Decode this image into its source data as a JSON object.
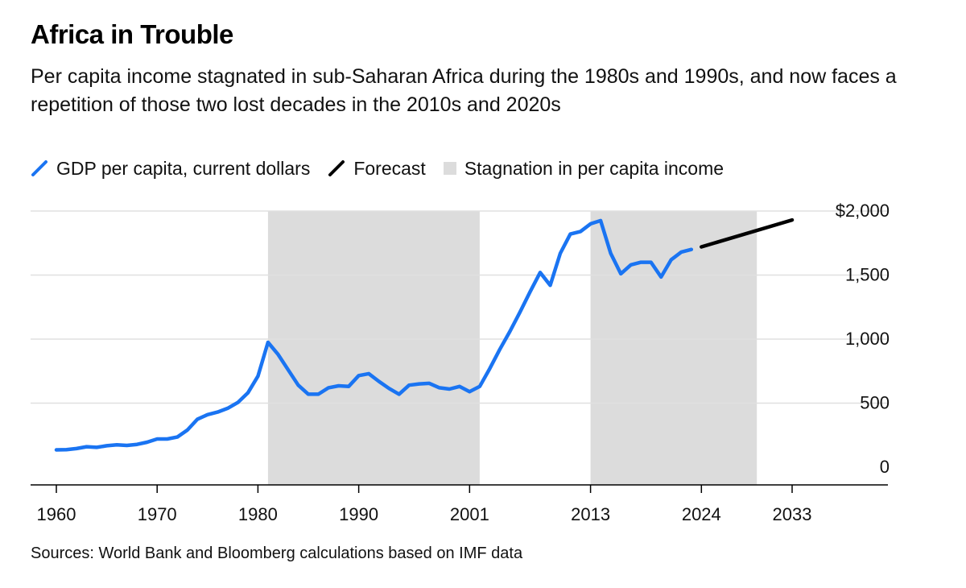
{
  "title": "Africa in Trouble",
  "subtitle": "Per capita income stagnated in sub-Saharan Africa during the 1980s and 1990s, and now faces a repetition of those two lost decades in the 2010s and 2020s",
  "source": "Sources: World Bank and Bloomberg calculations based on IMF data",
  "colors": {
    "gdp": "#1a74f2",
    "forecast": "#000000",
    "stagnation": "#dcdcdc",
    "grid": "#e0e0e0",
    "axis": "#000000"
  },
  "chart_data": {
    "type": "line",
    "title": "Africa in Trouble",
    "legend": [
      {
        "key": "gdp",
        "label": "GDP per capita, current dollars",
        "style": "line"
      },
      {
        "key": "forecast",
        "label": "Forecast",
        "style": "line"
      },
      {
        "key": "stagnation",
        "label": "Stagnation in per capita income",
        "style": "box"
      }
    ],
    "legend_placement": "top-left",
    "xlim": [
      1960,
      2033
    ],
    "x_ticks": [
      1960,
      1970,
      1980,
      1990,
      2001,
      2013,
      2024,
      2033
    ],
    "ylim": [
      0,
      2000
    ],
    "y_ticks": [
      0,
      500,
      1000,
      1500,
      2000
    ],
    "y_tick_labels": [
      "0",
      "500",
      "1,000",
      "1,500",
      "$2,000"
    ],
    "y_axis_side": "right",
    "grid": true,
    "stagnation_periods": [
      [
        1981,
        2002
      ],
      [
        2013,
        2029.5
      ]
    ],
    "series": [
      {
        "key": "gdp",
        "name": "GDP per capita, current dollars",
        "x": [
          1960,
          1961,
          1962,
          1963,
          1964,
          1965,
          1966,
          1967,
          1968,
          1969,
          1970,
          1971,
          1972,
          1973,
          1974,
          1975,
          1976,
          1977,
          1978,
          1979,
          1980,
          1981,
          1982,
          1983,
          1984,
          1985,
          1986,
          1987,
          1988,
          1989,
          1990,
          1991,
          1992,
          1993,
          1994,
          1995,
          1996,
          1997,
          1998,
          1999,
          2000,
          2001,
          2002,
          2003,
          2004,
          2005,
          2006,
          2007,
          2008,
          2009,
          2010,
          2011,
          2012,
          2013,
          2014,
          2015,
          2016,
          2017,
          2018,
          2019,
          2020,
          2021,
          2022,
          2023
        ],
        "values": [
          135,
          137,
          145,
          160,
          155,
          167,
          175,
          170,
          178,
          195,
          220,
          220,
          235,
          290,
          375,
          410,
          430,
          460,
          505,
          580,
          710,
          975,
          880,
          760,
          640,
          570,
          570,
          620,
          635,
          630,
          715,
          730,
          670,
          615,
          570,
          640,
          650,
          655,
          620,
          610,
          630,
          590,
          630,
          770,
          920,
          1060,
          1210,
          1370,
          1520,
          1420,
          1670,
          1820,
          1840,
          1900,
          1925,
          1670,
          1510,
          1580,
          1600,
          1600,
          1485,
          1620,
          1680,
          1700
        ]
      },
      {
        "key": "forecast",
        "name": "Forecast",
        "x": [
          2024,
          2033
        ],
        "values": [
          1720,
          1930
        ]
      }
    ]
  }
}
